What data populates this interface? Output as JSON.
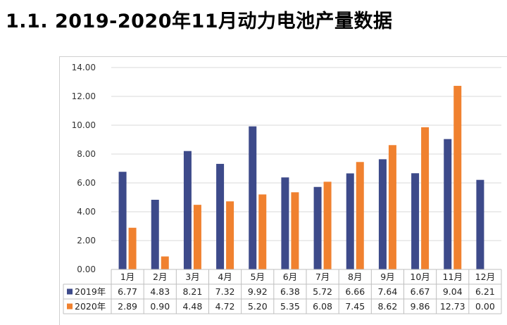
{
  "heading": "1.1.  2019-2020年11月动力电池产量数据",
  "colors": {
    "series_2019": "#3d4a8a",
    "series_2020": "#f0812f",
    "grid": "#d9d9d9"
  },
  "chart_data": {
    "type": "bar",
    "title": "",
    "xlabel": "",
    "ylabel": "",
    "ylim": [
      0,
      14
    ],
    "yticks": [
      "0.00",
      "2.00",
      "4.00",
      "6.00",
      "8.00",
      "10.00",
      "12.00",
      "14.00"
    ],
    "grid": true,
    "legend": "table",
    "categories": [
      "1月",
      "2月",
      "3月",
      "4月",
      "5月",
      "6月",
      "7月",
      "8月",
      "9月",
      "10月",
      "11月",
      "12月"
    ],
    "series": [
      {
        "name": "2019年",
        "values": [
          6.77,
          4.83,
          8.21,
          7.32,
          9.92,
          6.38,
          5.72,
          6.66,
          7.64,
          6.67,
          9.04,
          6.21
        ],
        "labels": [
          "6.77",
          "4.83",
          "8.21",
          "7.32",
          "9.92",
          "6.38",
          "5.72",
          "6.66",
          "7.64",
          "6.67",
          "9.04",
          "6.21"
        ]
      },
      {
        "name": "2020年",
        "values": [
          2.89,
          0.9,
          4.48,
          4.72,
          5.2,
          5.35,
          6.08,
          7.45,
          8.62,
          9.86,
          12.73,
          0.0
        ],
        "labels": [
          "2.89",
          "0.90",
          "4.48",
          "4.72",
          "5.20",
          "5.35",
          "6.08",
          "7.45",
          "8.62",
          "9.86",
          "12.73",
          "0.00"
        ]
      }
    ]
  }
}
